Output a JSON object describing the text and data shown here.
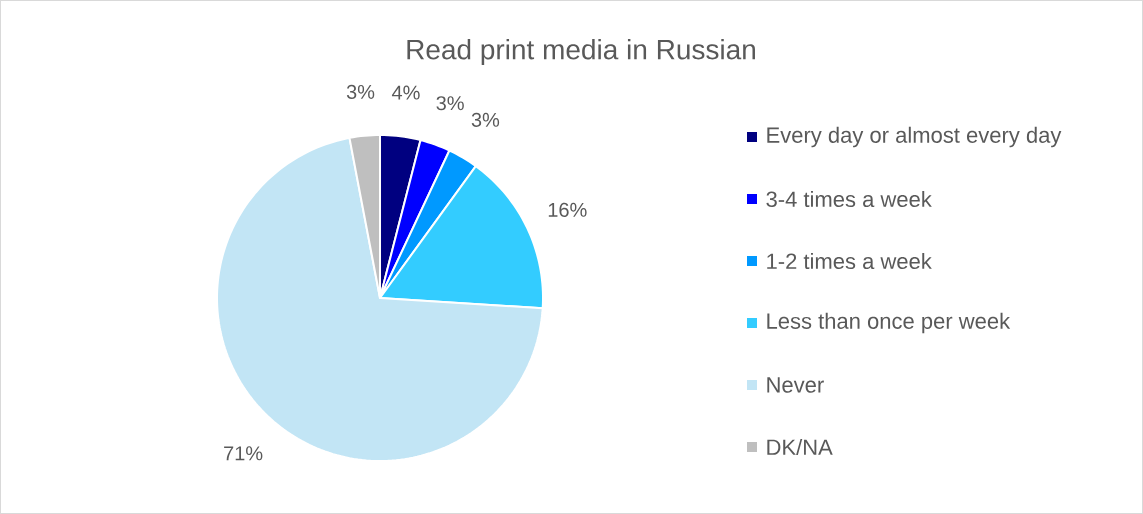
{
  "chart_data": {
    "type": "pie",
    "title": "Read print media in Russian",
    "categories": [
      "Every day or almost every day",
      "3-4 times a week",
      "1-2 times a week",
      "Less than once per week",
      "Never",
      "DK/NA"
    ],
    "values": [
      4,
      3,
      3,
      16,
      71,
      3
    ],
    "colors": [
      "#000080",
      "#0000ff",
      "#0099ff",
      "#33ccff",
      "#c2e5f5",
      "#bfbfbf"
    ],
    "value_labels": [
      "4%",
      "3%",
      "3%",
      "16%",
      "71%",
      "3%"
    ],
    "legend": "right"
  }
}
